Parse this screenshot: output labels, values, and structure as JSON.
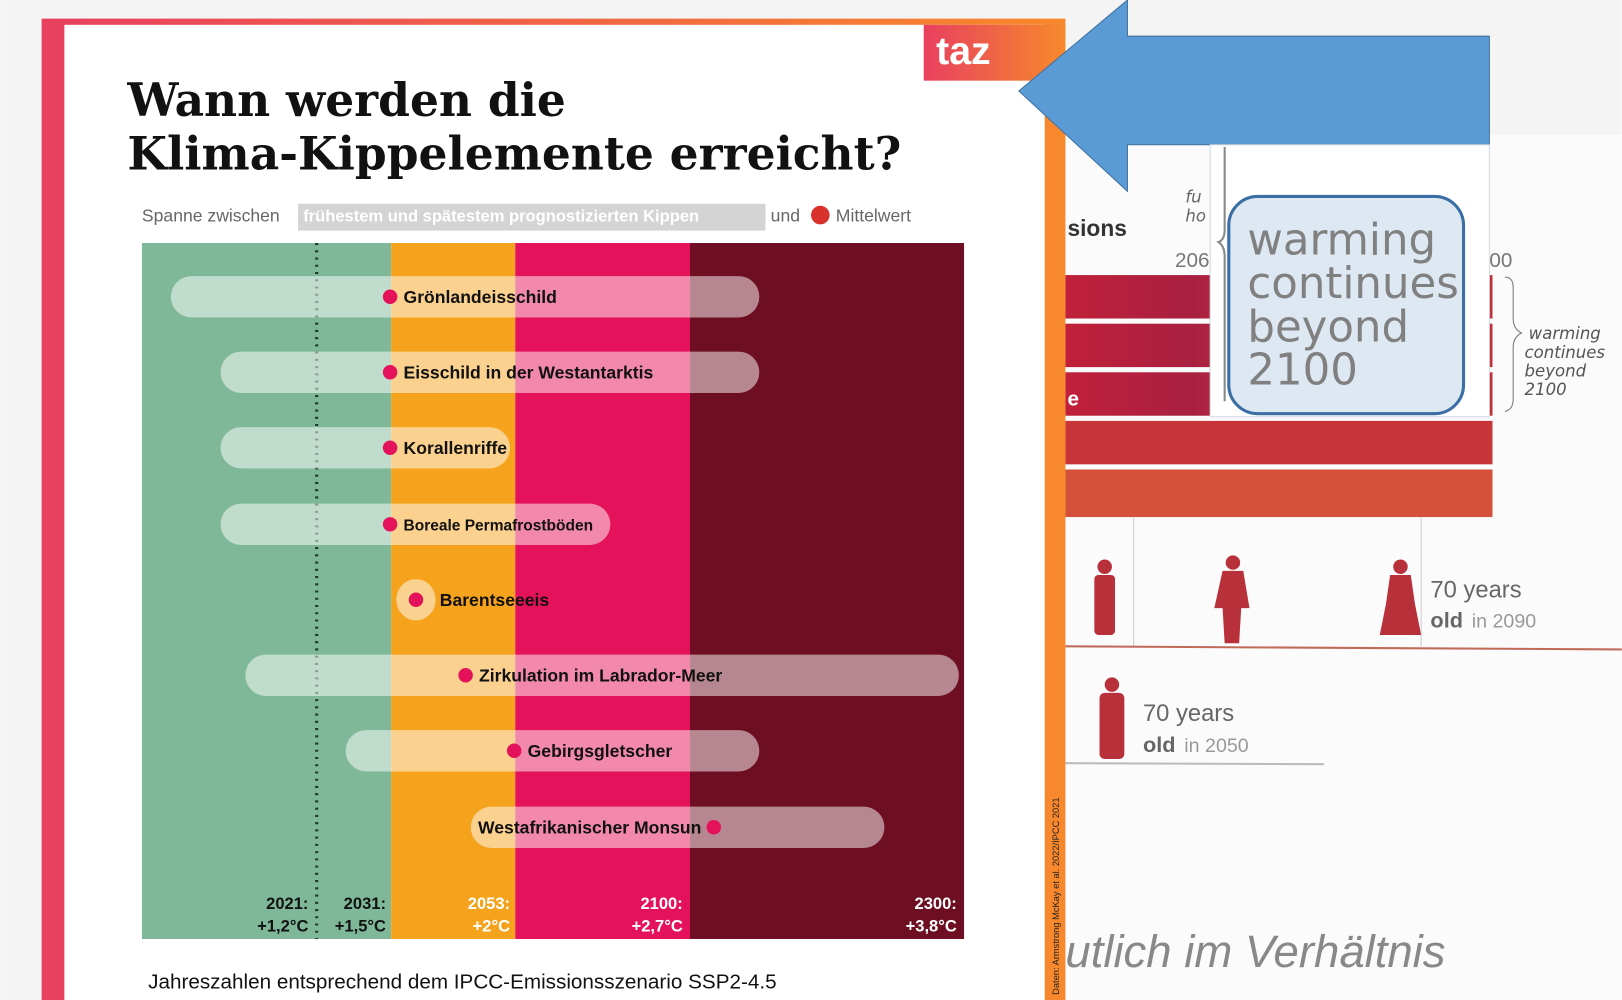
{
  "infographic": {
    "logo": "taz",
    "title_lines": [
      "Wann werden die",
      "Klima-Kippelemente erreicht?"
    ],
    "subtitle": {
      "prefix": "Spanne zwischen",
      "highlight": "frühestem und spätestem prognostizierten Kippen",
      "middle": "und",
      "suffix": "Mittelwert"
    },
    "elements": [
      "Grönlandeisschild",
      "Eisschild in der Westantarktis",
      "Korallenriffe",
      "Boreale Permafrostböden",
      "Barentseeeis",
      "Zirkulation im Labrador-Meer",
      "Gebirgsgletscher",
      "Westafrikanischer Monsun"
    ],
    "zones": [
      {
        "year": "2021:",
        "temp": "+1,2°C"
      },
      {
        "year": "2031:",
        "temp": "+1,5°C"
      },
      {
        "year": "2053:",
        "temp": "+2°C"
      },
      {
        "year": "2100:",
        "temp": "+2,7°C"
      },
      {
        "year": "2300:",
        "temp": "+3,8°C"
      }
    ],
    "footnote": "Jahreszahlen entsprechend dem IPCC-Emissionsszenario SSP2-4.5",
    "source": "Daten: Armstrong McKay et al. 2022/IPCC 2021"
  },
  "background": {
    "label": "sions",
    "note": [
      "fu",
      "ho"
    ],
    "years": [
      "206",
      "00"
    ],
    "row_label": "e",
    "annotation": [
      "warming",
      "continues",
      "beyond",
      "2100"
    ],
    "persons": [
      {
        "age": "70 years",
        "old": "old",
        "when": "in 2090"
      },
      {
        "age": "70 years",
        "old": "old",
        "when": "in 2050"
      }
    ],
    "bottom_text": "utlich im Verhältnis"
  },
  "zoom": {
    "lines": [
      "warming",
      "continues",
      "beyond",
      "2100"
    ]
  }
}
